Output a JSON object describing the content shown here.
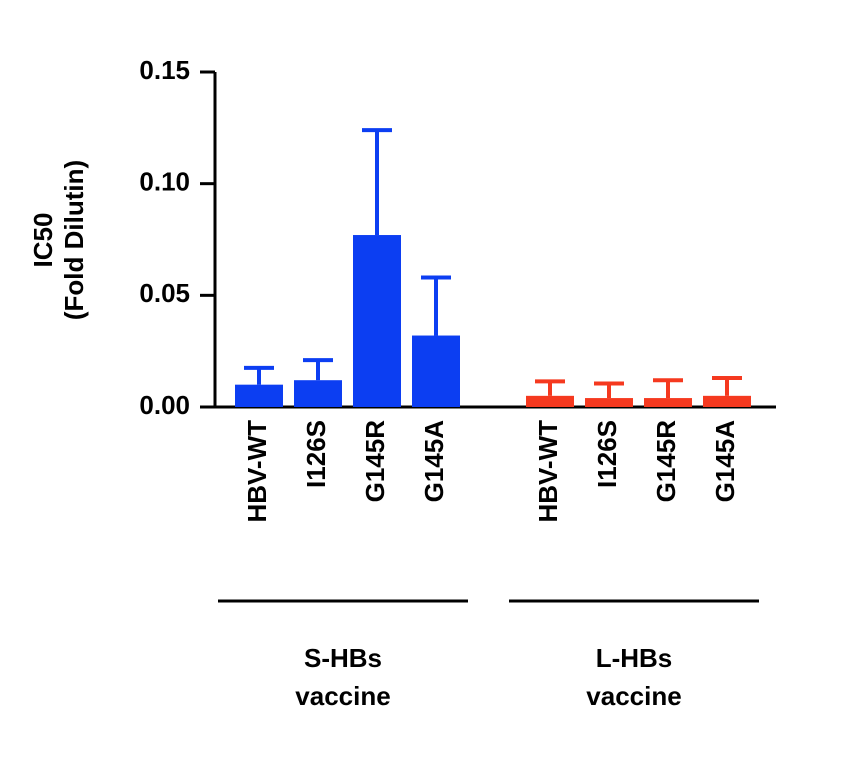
{
  "chart_data": {
    "type": "bar",
    "y_label": [
      "IC50",
      "(Fold Dilutin)"
    ],
    "ylim": [
      0,
      0.15
    ],
    "yticks": [
      {
        "value": 0,
        "label": "0.00"
      },
      {
        "value": 0.05,
        "label": "0.05"
      },
      {
        "value": 0.1,
        "label": "0.10"
      },
      {
        "value": 0.15,
        "label": "0.15"
      }
    ],
    "series": [
      {
        "name": [
          "S-HBs",
          "vaccine"
        ],
        "color": "#0c3ef2",
        "categories": [
          "HBV-WT",
          "I126S",
          "G145R",
          "G145A"
        ],
        "values": [
          0.01,
          0.012,
          0.077,
          0.032
        ],
        "errors": [
          0.0075,
          0.009,
          0.047,
          0.026
        ]
      },
      {
        "name": [
          "L-HBs",
          "vaccine"
        ],
        "color": "#f5391f",
        "categories": [
          "HBV-WT",
          "I126S",
          "G145R",
          "G145A"
        ],
        "values": [
          0.005,
          0.004,
          0.004,
          0.005
        ],
        "errors": [
          0.0065,
          0.0065,
          0.008,
          0.008
        ]
      }
    ]
  }
}
